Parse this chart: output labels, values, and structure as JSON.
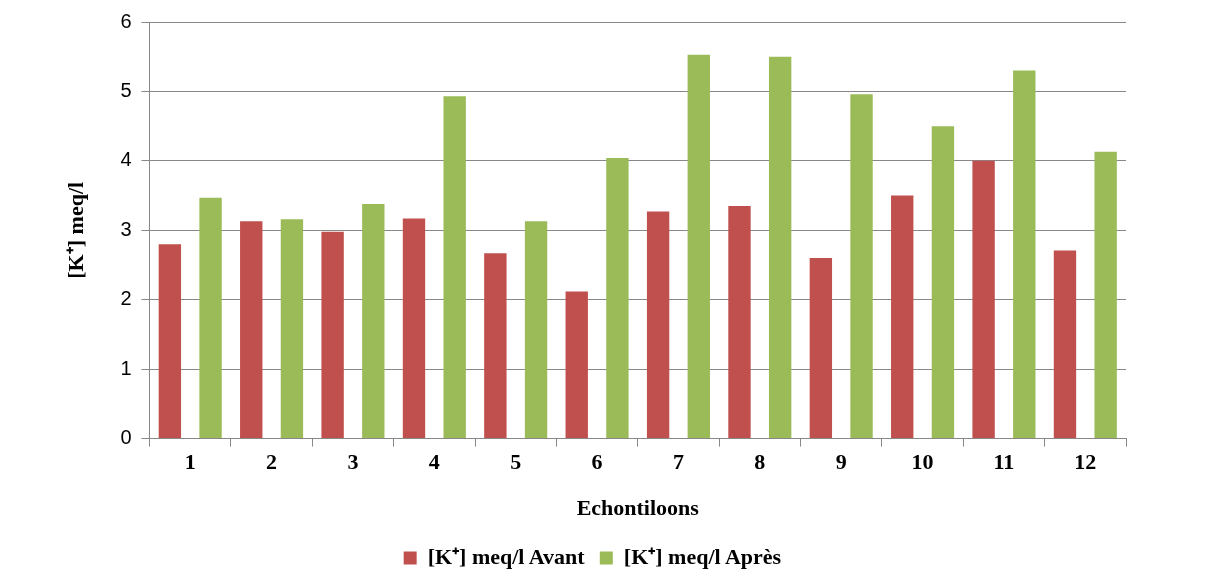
{
  "chart_data": {
    "type": "bar",
    "xlabel": "Echontiloons",
    "ylabel": "[K⁺] meq/l",
    "categories": [
      "1",
      "2",
      "3",
      "4",
      "5",
      "6",
      "7",
      "8",
      "9",
      "10",
      "11",
      "12"
    ],
    "series": [
      {
        "name": "[K⁺] meq/l Avant",
        "color": "#c0504d",
        "values": [
          2.8,
          3.13,
          2.98,
          3.17,
          2.67,
          2.12,
          3.27,
          3.35,
          2.6,
          3.5,
          4.0,
          2.71
        ]
      },
      {
        "name": "[K⁺] meq/l Après",
        "color": "#9bbb59",
        "values": [
          3.47,
          3.16,
          3.38,
          4.93,
          3.13,
          4.04,
          5.53,
          5.5,
          4.96,
          4.5,
          5.3,
          4.13
        ]
      }
    ],
    "ylim": [
      0,
      6
    ],
    "yticks": [
      0,
      1,
      2,
      3,
      4,
      5,
      6
    ],
    "grid": "y",
    "legend": "bottom"
  }
}
